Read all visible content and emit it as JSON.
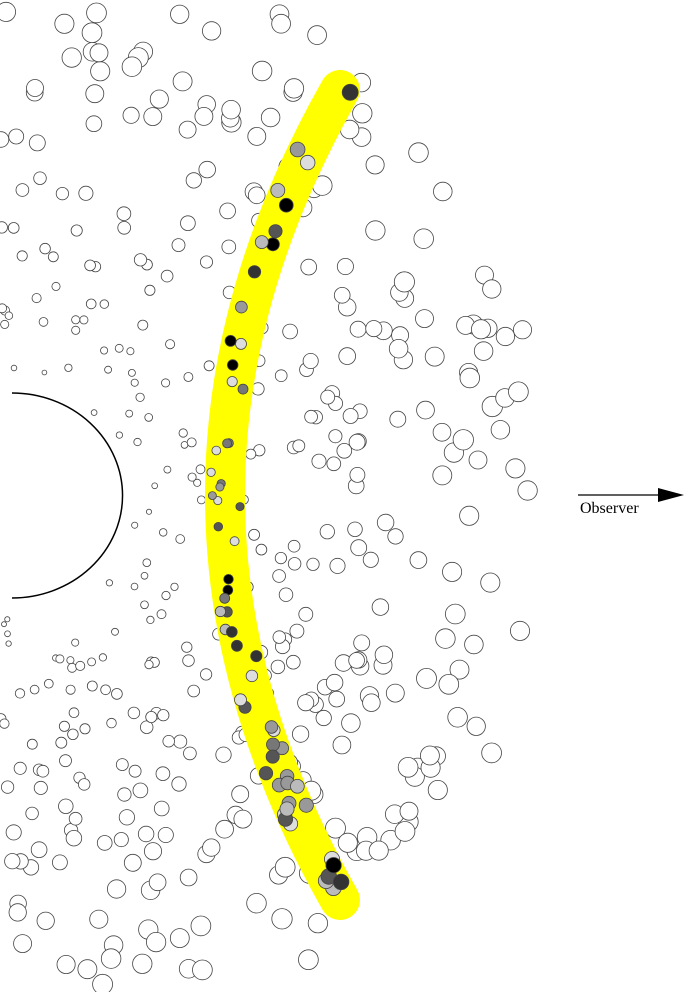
{
  "observer_label": "Observer"
}
